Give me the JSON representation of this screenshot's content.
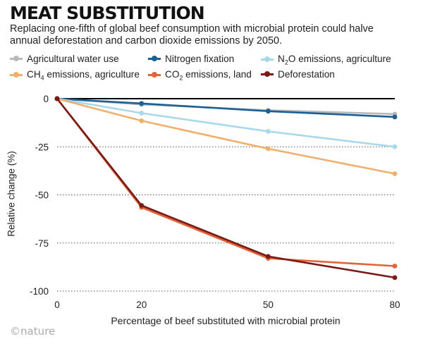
{
  "title": "MEAT SUBSTITUTION",
  "subtitle": "Replacing one-fifth of global beef consumption with microbial protein could halve annual deforestation and carbon dioxide emissions by 2050.",
  "footer": "©nature",
  "chart_data": {
    "type": "line",
    "title": "MEAT SUBSTITUTION",
    "xlabel": "Percentage of beef substituted with microbial protein",
    "ylabel": "Relative change (%)",
    "x": [
      0,
      20,
      50,
      80
    ],
    "x_ticks": [
      "0",
      "20",
      "50",
      "80"
    ],
    "y_ticks": [
      "0",
      "-25",
      "-50",
      "-75",
      "-100"
    ],
    "ylim": [
      -100,
      0
    ],
    "grid": "horizontal dotted",
    "legend_position": "top",
    "series": [
      {
        "name": "Agricultural water use",
        "label_parts": [
          "Agricultural water use"
        ],
        "color": "#b8b8b8",
        "values": [
          0,
          -3,
          -6,
          -8
        ]
      },
      {
        "name": "Nitrogen fixation",
        "label_parts": [
          "Nitrogen fixation"
        ],
        "color": "#1a5f96",
        "values": [
          0,
          -2.5,
          -6.5,
          -9.5
        ]
      },
      {
        "name": "N2O emissions, agriculture",
        "label_parts": [
          "N",
          "2",
          "O emissions, agriculture"
        ],
        "color": "#a8d8ea",
        "values": [
          0,
          -7.5,
          -17,
          -25
        ]
      },
      {
        "name": "CH4 emissions, agriculture",
        "label_parts": [
          "CH",
          "4",
          " emissions, agriculture"
        ],
        "color": "#efb06c",
        "values": [
          0,
          -11.5,
          -26,
          -39
        ]
      },
      {
        "name": "CO2 emissions, land",
        "label_parts": [
          "CO",
          "2",
          " emissions, land"
        ],
        "color": "#e0643a",
        "values": [
          0,
          -56.5,
          -83,
          -87
        ]
      },
      {
        "name": "Deforestation",
        "label_parts": [
          "Deforestation"
        ],
        "color": "#7a1a14",
        "values": [
          0,
          -55.5,
          -82,
          -93
        ]
      }
    ]
  }
}
